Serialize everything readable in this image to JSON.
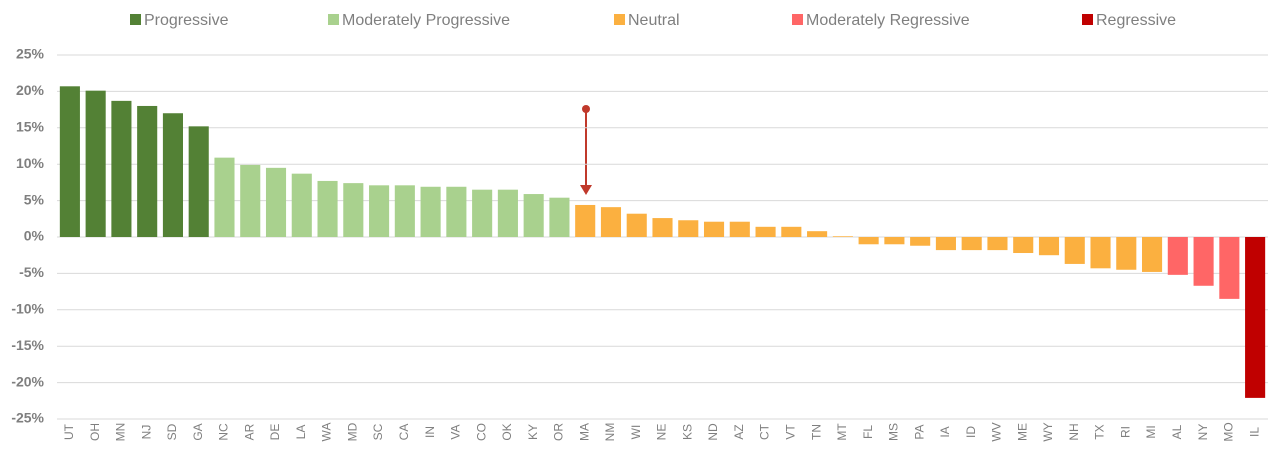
{
  "chart_data": {
    "type": "bar",
    "categories": [
      "UT",
      "OH",
      "MN",
      "NJ",
      "SD",
      "GA",
      "NC",
      "AR",
      "DE",
      "LA",
      "WA",
      "MD",
      "SC",
      "CA",
      "IN",
      "VA",
      "CO",
      "OK",
      "KY",
      "OR",
      "MA",
      "NM",
      "WI",
      "NE",
      "KS",
      "ND",
      "AZ",
      "CT",
      "VT",
      "TN",
      "MT",
      "FL",
      "MS",
      "PA",
      "IA",
      "ID",
      "WV",
      "ME",
      "WY",
      "NH",
      "TX",
      "RI",
      "MI",
      "AL",
      "NY",
      "MO",
      "IL"
    ],
    "series": [
      {
        "name": "Progressive",
        "color": "#538135",
        "values": [
          20.7,
          20.1,
          18.7,
          18.0,
          17.0,
          15.2,
          null,
          null,
          null,
          null,
          null,
          null,
          null,
          null,
          null,
          null,
          null,
          null,
          null,
          null,
          null,
          null,
          null,
          null,
          null,
          null,
          null,
          null,
          null,
          null,
          null,
          null,
          null,
          null,
          null,
          null,
          null,
          null,
          null,
          null,
          null,
          null,
          null,
          null,
          null,
          null,
          null
        ]
      },
      {
        "name": "Moderately Progressive",
        "color": "#a9d18e",
        "values": [
          null,
          null,
          null,
          null,
          null,
          null,
          10.9,
          9.9,
          9.5,
          8.7,
          7.7,
          7.4,
          7.1,
          7.1,
          6.9,
          6.9,
          6.5,
          6.5,
          5.9,
          5.4,
          null,
          null,
          null,
          null,
          null,
          null,
          null,
          null,
          null,
          null,
          null,
          null,
          null,
          null,
          null,
          null,
          null,
          null,
          null,
          null,
          null,
          null,
          null,
          null,
          null,
          null,
          null
        ]
      },
      {
        "name": "Neutral",
        "color": "#fbb040",
        "values": [
          null,
          null,
          null,
          null,
          null,
          null,
          null,
          null,
          null,
          null,
          null,
          null,
          null,
          null,
          null,
          null,
          null,
          null,
          null,
          null,
          4.4,
          4.1,
          3.2,
          2.6,
          2.3,
          2.1,
          2.1,
          1.4,
          1.4,
          0.8,
          0.1,
          -1.0,
          -1.0,
          -1.2,
          -1.8,
          -1.8,
          -1.8,
          -2.2,
          -2.5,
          -3.7,
          -4.3,
          -4.5,
          -4.8,
          null,
          null,
          null,
          null
        ]
      },
      {
        "name": "Moderately Regressive",
        "color": "#ff6666",
        "values": [
          null,
          null,
          null,
          null,
          null,
          null,
          null,
          null,
          null,
          null,
          null,
          null,
          null,
          null,
          null,
          null,
          null,
          null,
          null,
          null,
          null,
          null,
          null,
          null,
          null,
          null,
          null,
          null,
          null,
          null,
          null,
          null,
          null,
          null,
          null,
          null,
          null,
          null,
          null,
          null,
          null,
          null,
          null,
          -5.2,
          -6.7,
          -8.5,
          null
        ]
      },
      {
        "name": "Regressive",
        "color": "#c00000",
        "values": [
          null,
          null,
          null,
          null,
          null,
          null,
          null,
          null,
          null,
          null,
          null,
          null,
          null,
          null,
          null,
          null,
          null,
          null,
          null,
          null,
          null,
          null,
          null,
          null,
          null,
          null,
          null,
          null,
          null,
          null,
          null,
          null,
          null,
          null,
          null,
          null,
          null,
          null,
          null,
          null,
          null,
          null,
          null,
          null,
          null,
          null,
          -22.1
        ]
      }
    ],
    "ylim": [
      -25,
      25
    ],
    "yticks": [
      {
        "value": -25,
        "label": "-25%"
      },
      {
        "value": -20,
        "label": "-20%"
      },
      {
        "value": -15,
        "label": "-15%"
      },
      {
        "value": -10,
        "label": "-10%"
      },
      {
        "value": -5,
        "label": "-5%"
      },
      {
        "value": 0,
        "label": "0%"
      },
      {
        "value": 5,
        "label": "5%"
      },
      {
        "value": 10,
        "label": "10%"
      },
      {
        "value": 15,
        "label": "15%"
      },
      {
        "value": 20,
        "label": "20%"
      },
      {
        "value": 25,
        "label": "25%"
      }
    ],
    "grid": true
  }
}
